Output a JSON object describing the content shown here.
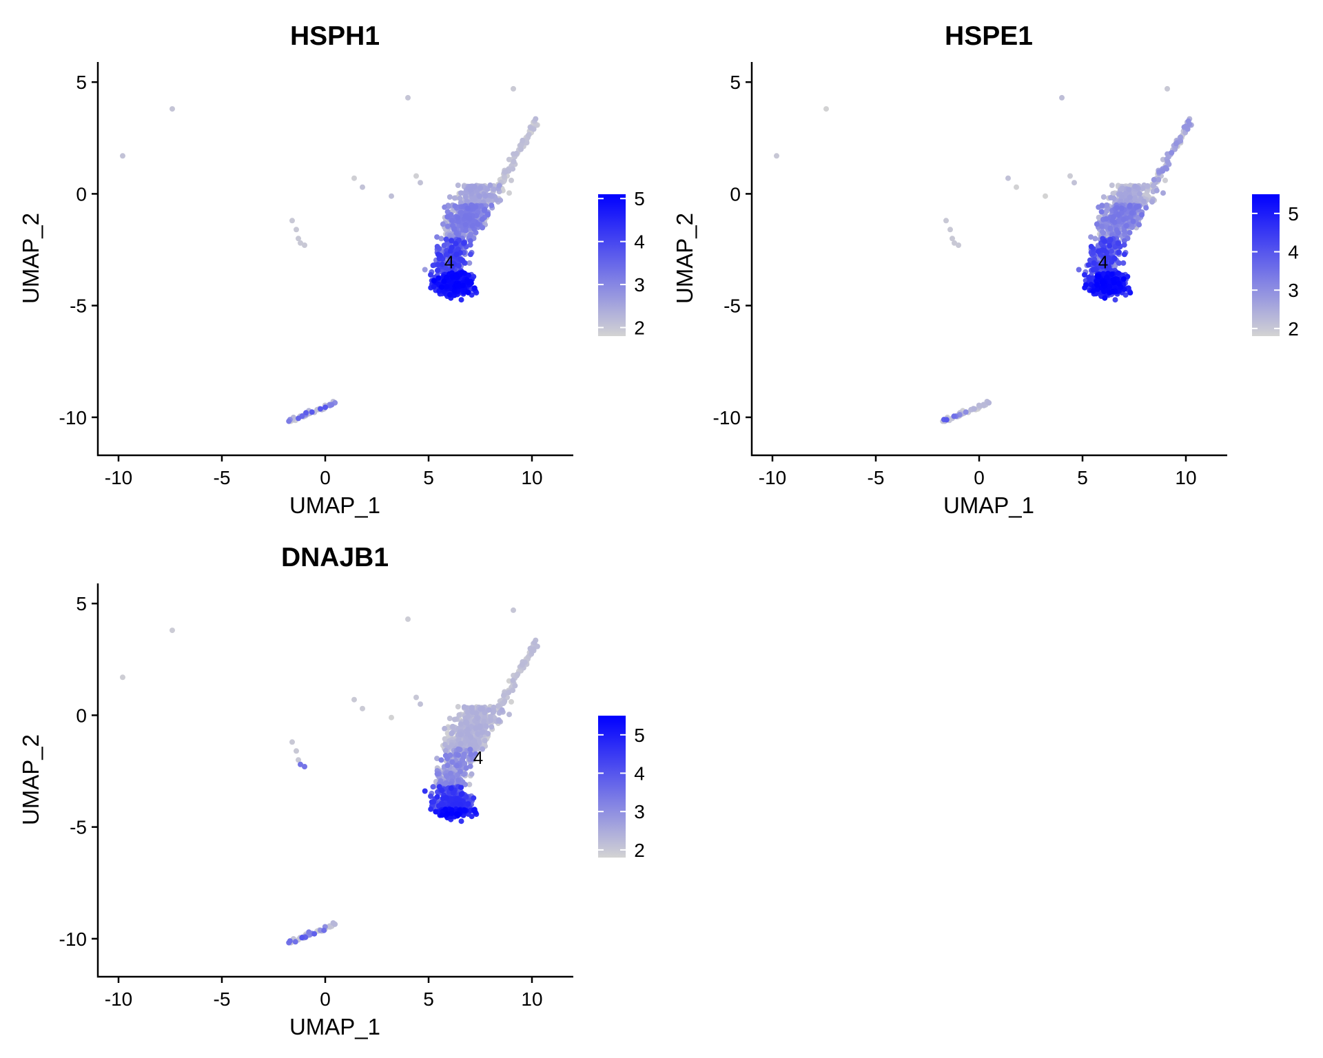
{
  "chart_data": [
    {
      "type": "scatter",
      "title": "HSPH1",
      "xlabel": "UMAP_1",
      "ylabel": "UMAP_2",
      "xlim": [
        -11,
        12
      ],
      "ylim": [
        -11.7,
        5.9
      ],
      "xticks": [
        -10,
        -5,
        0,
        5,
        10
      ],
      "yticks": [
        5,
        0,
        -5,
        -10
      ],
      "cluster_label": {
        "text": "4",
        "x": 6.0,
        "y": -3.05
      },
      "colorbar": {
        "min": 1.8,
        "max": 5.1,
        "ticks": [
          2,
          3,
          4,
          5
        ],
        "low_color": "#d3d3d3",
        "high_color": "#0000ff"
      },
      "high_expression_region": "bottom",
      "grid": false,
      "legend": "right"
    },
    {
      "type": "scatter",
      "title": "HSPE1",
      "xlabel": "UMAP_1",
      "ylabel": "UMAP_2",
      "xlim": [
        -11,
        12
      ],
      "ylim": [
        -11.7,
        5.9
      ],
      "xticks": [
        -10,
        -5,
        0,
        5,
        10
      ],
      "yticks": [
        5,
        0,
        -5,
        -10
      ],
      "cluster_label": {
        "text": "4",
        "x": 6.0,
        "y": -3.05
      },
      "colorbar": {
        "min": 1.8,
        "max": 5.5,
        "ticks": [
          2,
          3,
          4,
          5
        ],
        "low_color": "#d3d3d3",
        "high_color": "#0000ff"
      },
      "high_expression_region": "bottom",
      "grid": false,
      "legend": "right"
    },
    {
      "type": "scatter",
      "title": "DNAJB1",
      "xlabel": "UMAP_1",
      "ylabel": "UMAP_2",
      "xlim": [
        -11,
        12
      ],
      "ylim": [
        -11.7,
        5.9
      ],
      "xticks": [
        -10,
        -5,
        0,
        5,
        10
      ],
      "yticks": [
        5,
        0,
        -5,
        -10
      ],
      "cluster_label": {
        "text": "4",
        "x": 7.4,
        "y": -1.9
      },
      "colorbar": {
        "min": 1.8,
        "max": 5.5,
        "ticks": [
          2,
          3,
          4,
          5
        ],
        "low_color": "#d3d3d3",
        "high_color": "#0000ff"
      },
      "high_expression_region": "bottom-edge",
      "grid": false,
      "legend": "right"
    }
  ]
}
